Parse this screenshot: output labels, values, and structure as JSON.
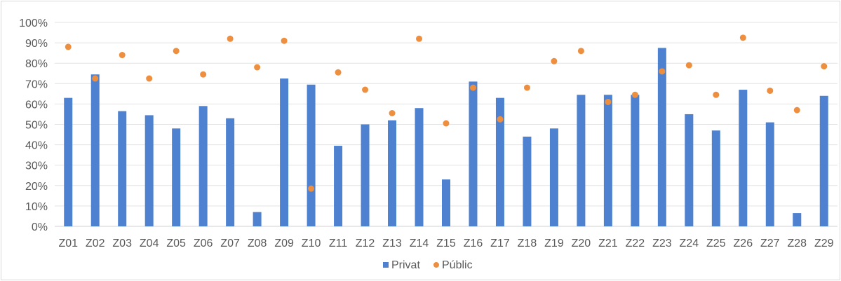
{
  "chart_data": {
    "type": "bar",
    "categories": [
      "Z01",
      "Z02",
      "Z03",
      "Z04",
      "Z05",
      "Z06",
      "Z07",
      "Z08",
      "Z09",
      "Z10",
      "Z11",
      "Z12",
      "Z13",
      "Z14",
      "Z15",
      "Z16",
      "Z17",
      "Z18",
      "Z19",
      "Z20",
      "Z21",
      "Z22",
      "Z23",
      "Z24",
      "Z25",
      "Z26",
      "Z27",
      "Z28",
      "Z29"
    ],
    "series": [
      {
        "name": "Privat",
        "render": "bar",
        "color": "#4f81d1",
        "values": [
          63,
          74.5,
          56.5,
          54.5,
          48,
          59,
          53,
          7,
          72.5,
          69.5,
          39.5,
          50,
          52,
          58,
          23,
          71,
          63,
          44,
          48,
          64.5,
          64.5,
          64.5,
          87.5,
          55,
          47,
          67,
          51,
          6.5,
          64
        ]
      },
      {
        "name": "Públic",
        "render": "point",
        "color": "#ed8f3f",
        "values": [
          88,
          72.5,
          84,
          72.5,
          86,
          74.5,
          92,
          78,
          91,
          18.5,
          75.5,
          67,
          55.5,
          92,
          50.5,
          68,
          52.5,
          68,
          81,
          86,
          61,
          64.5,
          76,
          79,
          64.5,
          92.5,
          66.5,
          57,
          78.5
        ]
      }
    ],
    "ylim": [
      0,
      100
    ],
    "y_ticks": [
      "0%",
      "10%",
      "20%",
      "30%",
      "40%",
      "50%",
      "60%",
      "70%",
      "80%",
      "90%",
      "100%"
    ],
    "y_tick_values": [
      0,
      10,
      20,
      30,
      40,
      50,
      60,
      70,
      80,
      90,
      100
    ],
    "xlabel": "",
    "ylabel": "",
    "title": "",
    "grid": "horizontal",
    "legend_position": "bottom-center",
    "gridline_color": "#e3e3e3"
  }
}
